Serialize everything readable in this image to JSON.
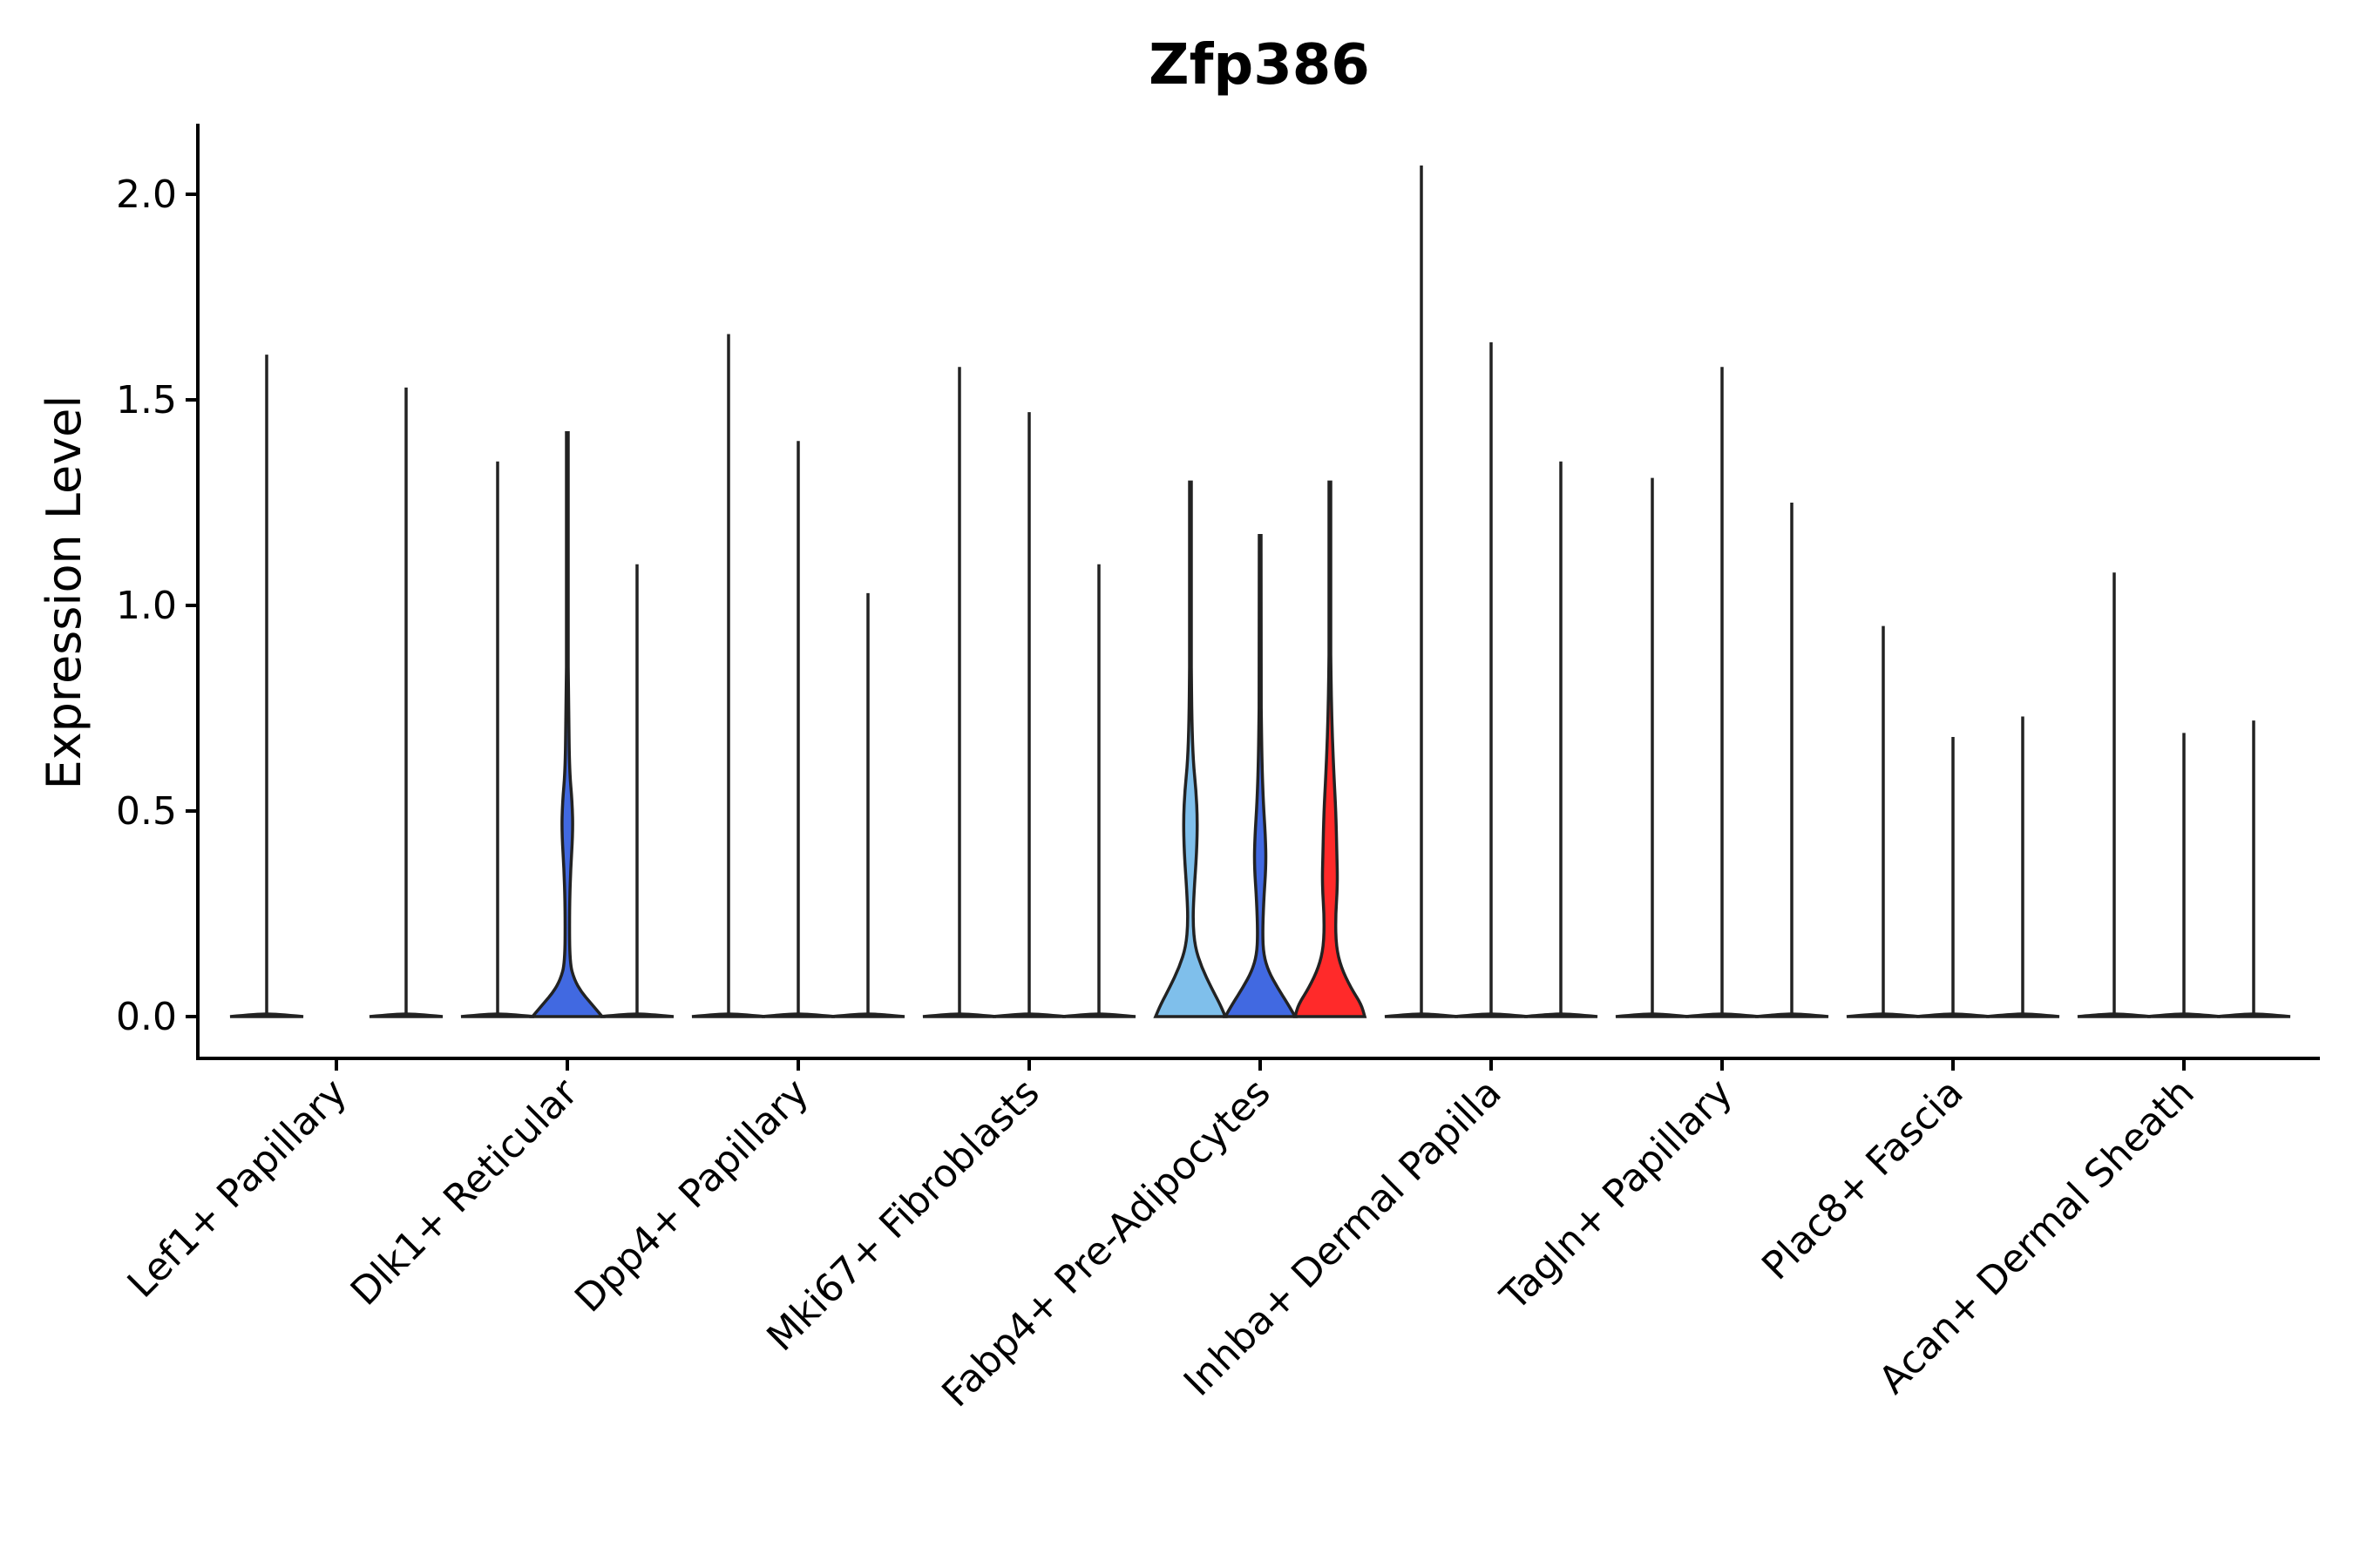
{
  "chart_data": {
    "type": "violin",
    "title": "Zfp386",
    "xlabel": "",
    "ylabel": "Expression Level",
    "ylim": [
      -0.1,
      2.18
    ],
    "yticks": [
      "0.0",
      "0.5",
      "1.0",
      "1.5",
      "2.0"
    ],
    "ytick_values": [
      0,
      0.5,
      1.0,
      1.5,
      2.0
    ],
    "categories": [
      "Lef1+ Papillary",
      "Dlk1+ Reticular",
      "Dpp4+ Papillary",
      "Mki67+ Fibroblasts",
      "Fabp4+ Pre-Adipocytes",
      "Inhba+ Dermal Papilla",
      "Tagln+ Papillary",
      "Plac8+ Fascia",
      "Acan+ Dermal Sheath"
    ],
    "groups": [
      {
        "category": "Lef1+ Papillary",
        "violins": [
          {
            "max": 1.61,
            "color": "#ffffff",
            "shape": "flat"
          },
          {
            "max": 1.53,
            "color": "#ffffff",
            "shape": "flat"
          }
        ]
      },
      {
        "category": "Dlk1+ Reticular",
        "violins": [
          {
            "max": 1.35,
            "color": "#ffffff",
            "shape": "flat"
          },
          {
            "max": 1.42,
            "color": "#4169e1",
            "shape": "dlk1"
          },
          {
            "max": 1.1,
            "color": "#ffffff",
            "shape": "flat"
          }
        ]
      },
      {
        "category": "Dpp4+ Papillary",
        "violins": [
          {
            "max": 1.66,
            "color": "#ffffff",
            "shape": "flat"
          },
          {
            "max": 1.4,
            "color": "#ffffff",
            "shape": "flat"
          },
          {
            "max": 1.03,
            "color": "#ffffff",
            "shape": "flat"
          }
        ]
      },
      {
        "category": "Mki67+ Fibroblasts",
        "violins": [
          {
            "max": 1.58,
            "color": "#ffffff",
            "shape": "flat"
          },
          {
            "max": 1.47,
            "color": "#ffffff",
            "shape": "flat"
          },
          {
            "max": 1.1,
            "color": "#ffffff",
            "shape": "flat"
          }
        ]
      },
      {
        "category": "Fabp4+ Pre-Adipocytes",
        "violins": [
          {
            "max": 1.3,
            "color": "#7fbfeb",
            "shape": "fabp_a"
          },
          {
            "max": 1.17,
            "color": "#4169e1",
            "shape": "fabp_b"
          },
          {
            "max": 1.3,
            "color": "#ff2a2a",
            "shape": "fabp_c"
          }
        ]
      },
      {
        "category": "Inhba+ Dermal Papilla",
        "violins": [
          {
            "max": 2.07,
            "color": "#ffffff",
            "shape": "flat"
          },
          {
            "max": 1.64,
            "color": "#ffffff",
            "shape": "flat"
          },
          {
            "max": 1.35,
            "color": "#ffffff",
            "shape": "flat"
          }
        ]
      },
      {
        "category": "Tagln+ Papillary",
        "violins": [
          {
            "max": 1.31,
            "color": "#ffffff",
            "shape": "flat"
          },
          {
            "max": 1.58,
            "color": "#ffffff",
            "shape": "flat"
          },
          {
            "max": 1.25,
            "color": "#ffffff",
            "shape": "flat"
          }
        ]
      },
      {
        "category": "Plac8+ Fascia",
        "violins": [
          {
            "max": 0.95,
            "color": "#ffffff",
            "shape": "flat"
          },
          {
            "max": 0.68,
            "color": "#ffffff",
            "shape": "flat"
          },
          {
            "max": 0.73,
            "color": "#ffffff",
            "shape": "flat"
          }
        ]
      },
      {
        "category": "Acan+ Dermal Sheath",
        "violins": [
          {
            "max": 1.08,
            "color": "#ffffff",
            "shape": "flat"
          },
          {
            "max": 0.69,
            "color": "#ffffff",
            "shape": "flat"
          },
          {
            "max": 0.72,
            "color": "#ffffff",
            "shape": "flat"
          }
        ]
      }
    ]
  }
}
